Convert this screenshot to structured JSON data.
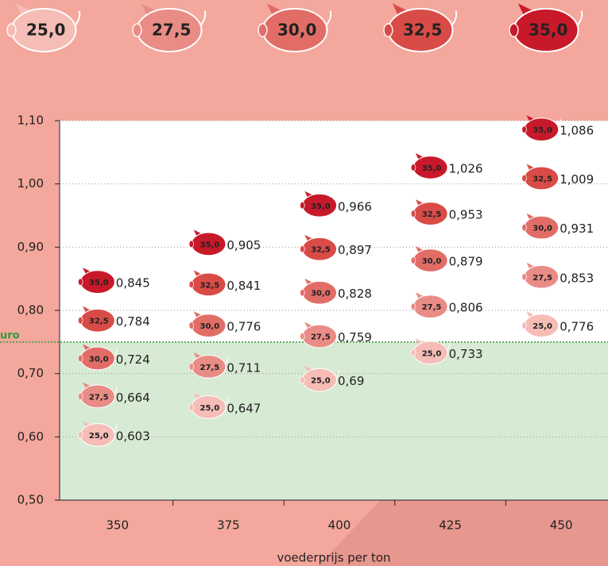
{
  "chart_data": {
    "type": "scatter",
    "x_label": "voederprijs per ton",
    "categories": [
      "350",
      "375",
      "400",
      "425",
      "450"
    ],
    "series": [
      {
        "name": "25,0",
        "color": "#f5bdb6",
        "values": [
          0.603,
          0.647,
          0.69,
          0.733,
          0.776
        ],
        "value_labels": [
          "0,603",
          "0,647",
          "0,69",
          "0,733",
          "0,776"
        ]
      },
      {
        "name": "27,5",
        "color": "#ea8c86",
        "values": [
          0.664,
          0.711,
          0.759,
          0.806,
          0.853
        ],
        "value_labels": [
          "0,664",
          "0,711",
          "0,759",
          "0,806",
          "0,853"
        ]
      },
      {
        "name": "30,0",
        "color": "#e26d67",
        "values": [
          0.724,
          0.776,
          0.828,
          0.879,
          0.931
        ],
        "value_labels": [
          "0,724",
          "0,776",
          "0,828",
          "0,879",
          "0,931"
        ]
      },
      {
        "name": "32,5",
        "color": "#d94b46",
        "values": [
          0.784,
          0.841,
          0.897,
          0.953,
          1.009
        ],
        "value_labels": [
          "0,784",
          "0,841",
          "0,897",
          "0,953",
          "1,009"
        ]
      },
      {
        "name": "35,0",
        "color": "#c8192a",
        "values": [
          0.845,
          0.905,
          0.966,
          1.026,
          1.086
        ],
        "value_labels": [
          "0,845",
          "0,905",
          "0,966",
          "1,026",
          "1,086"
        ]
      }
    ],
    "ylim": [
      0.5,
      1.1
    ],
    "yticks": [
      {
        "value": 0.5,
        "label": "0,50"
      },
      {
        "value": 0.6,
        "label": "0,60"
      },
      {
        "value": 0.7,
        "label": "0,70"
      },
      {
        "value": 0.8,
        "label": "0,80"
      },
      {
        "value": 0.9,
        "label": "0,90"
      },
      {
        "value": 1.0,
        "label": "1,00"
      },
      {
        "value": 1.1,
        "label": "1,10"
      }
    ],
    "grid": true,
    "threshold": {
      "value": 0.75,
      "label": "uro",
      "color": "#2e9a3c"
    }
  }
}
